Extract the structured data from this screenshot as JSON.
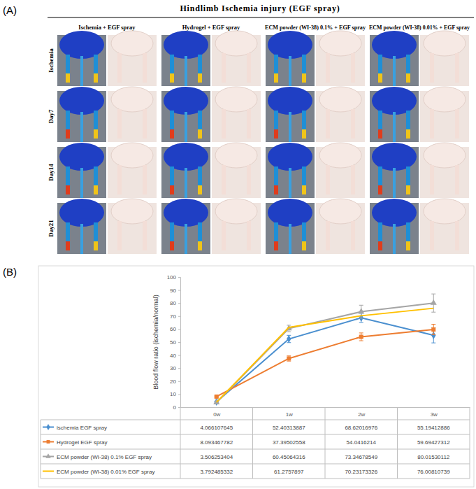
{
  "figure": {
    "panel_a": {
      "label": "(A)",
      "title": "Hindlimb Ischemia injury (EGF spray)",
      "columns": [
        "Ischemia + EGF spray",
        "Hydrogel + EGF spray",
        "ECM powder (WI-38) 0.1% + EGF spray",
        "ECM powder (WI-38) 0.01% + EGF spray"
      ],
      "rows": [
        "Ischemia",
        "Day7",
        "Day14",
        "Day21"
      ]
    },
    "panel_b": {
      "label": "(B)"
    }
  },
  "chart_data": {
    "type": "line",
    "y_label": "Blood flow ratio (ischemia/normal)",
    "categories": [
      "0w",
      "1w",
      "2w",
      "3w"
    ],
    "ylim": [
      0,
      100
    ],
    "yticks": [
      0,
      10,
      20,
      30,
      40,
      50,
      60,
      70,
      80,
      90,
      100
    ],
    "grid": false,
    "series": [
      {
        "name": "ischemia EGF spray",
        "color": "#4a8fcf",
        "marker": "diamond",
        "values": [
          4.066107645,
          52.40313887,
          68.62016976,
          55.19412886
        ],
        "errors": [
          0.5,
          2.8,
          3.5,
          5.8
        ]
      },
      {
        "name": "Hydrogel EGF spray",
        "color": "#ed7d31",
        "marker": "square",
        "values": [
          8.093467782,
          37.39502558,
          54.0416214,
          59.69427312
        ],
        "errors": [
          0.5,
          2,
          3,
          4
        ]
      },
      {
        "name": "ECM powder (WI-38) 0.1% EGF spray",
        "color": "#a5a5a5",
        "marker": "triangle",
        "values": [
          3.506253404,
          60.45064316,
          73.34678549,
          80.01530112
        ],
        "errors": [
          0.5,
          2.5,
          5,
          7
        ]
      },
      {
        "name": "ECM powder (WI-38) 0.01% EGF spray",
        "color": "#ffc000",
        "marker": "none",
        "values": [
          3.792485332,
          61.2757897,
          70.23173326,
          76.00810739
        ]
      }
    ]
  }
}
